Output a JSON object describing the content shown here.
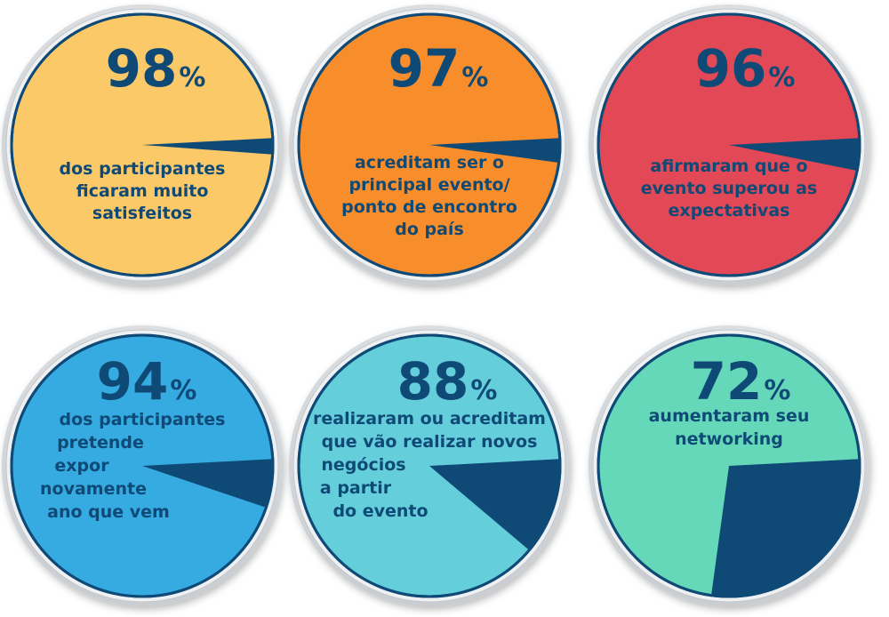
{
  "colors": {
    "accent_dark": "#0f4a77",
    "ring_outer": "#d9dcdf",
    "ring_inner": "#f4f5f6"
  },
  "chart_data": [
    {
      "type": "pie",
      "values": [
        98,
        2
      ],
      "value_label": "98",
      "percent_sign": "%",
      "color": "#fcc969",
      "description": [
        "dos participantes",
        "ficaram muito",
        "satisfeitos"
      ]
    },
    {
      "type": "pie",
      "values": [
        97,
        3
      ],
      "value_label": "97",
      "percent_sign": "%",
      "color": "#f88e2b",
      "description": [
        "acreditam ser o",
        "principal evento/",
        "ponto de encontro",
        "do país"
      ]
    },
    {
      "type": "pie",
      "values": [
        96,
        4
      ],
      "value_label": "96",
      "percent_sign": "%",
      "color": "#e24856",
      "description": [
        "afirmaram que o",
        "evento superou as",
        "expectativas"
      ]
    },
    {
      "type": "pie",
      "values": [
        94,
        6
      ],
      "value_label": "94",
      "percent_sign": "%",
      "color": "#35abe2",
      "description": [
        "dos participantes",
        "pretende",
        "expor",
        "novamente",
        "ano que vem"
      ]
    },
    {
      "type": "pie",
      "values": [
        88,
        12
      ],
      "value_label": "88",
      "percent_sign": "%",
      "color": "#65cedb",
      "description": [
        "realizaram ou acreditam",
        "que vão realizar novos",
        "negócios",
        "a partir",
        "do evento"
      ]
    },
    {
      "type": "pie",
      "values": [
        72,
        28
      ],
      "value_label": "72",
      "percent_sign": "%",
      "color": "#66d8ba",
      "description": [
        "aumentaram seu",
        "networking"
      ]
    }
  ]
}
